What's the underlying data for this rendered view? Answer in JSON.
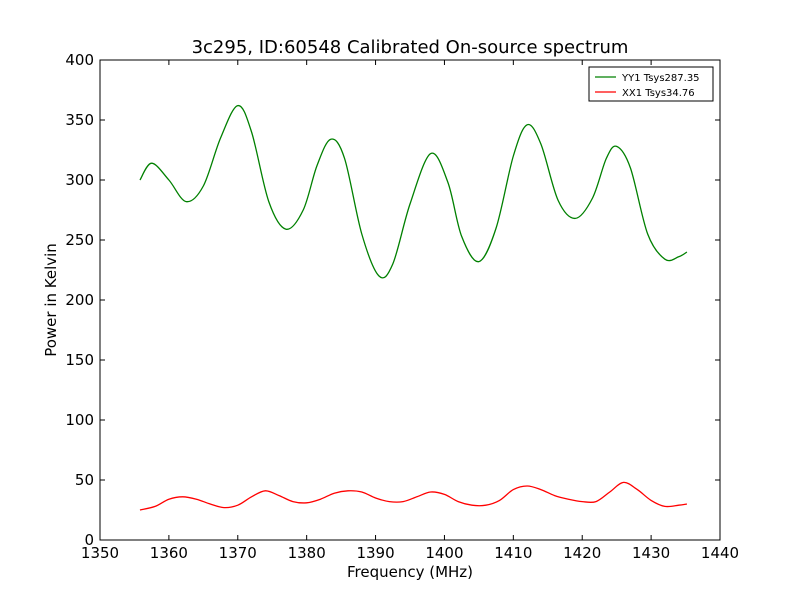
{
  "chart_data": {
    "type": "line",
    "title": "3c295, ID:60548 Calibrated On-source spectrum",
    "xlabel": "Frequency (MHz)",
    "ylabel": "Power in Kelvin",
    "xlim": [
      1350,
      1440
    ],
    "ylim": [
      0,
      400
    ],
    "xticks": [
      1350,
      1360,
      1370,
      1380,
      1390,
      1400,
      1410,
      1420,
      1430,
      1440
    ],
    "yticks": [
      0,
      50,
      100,
      150,
      200,
      250,
      300,
      350,
      400
    ],
    "grid": false,
    "legend_position": "top-right",
    "series": [
      {
        "name": "YY1 Tsys287.35",
        "color": "#008000",
        "x": [
          1355.8,
          1357.5,
          1360,
          1362.5,
          1365,
          1367.5,
          1370,
          1372,
          1374.5,
          1377,
          1379.5,
          1381.5,
          1383.5,
          1385.5,
          1388,
          1390.5,
          1392.5,
          1395,
          1398,
          1400.5,
          1402.5,
          1405,
          1407.5,
          1410,
          1412,
          1414,
          1416.5,
          1419,
          1421.5,
          1423.5,
          1425,
          1427,
          1429.5,
          1432,
          1434,
          1435.2
        ],
        "y": [
          300,
          314,
          300,
          282,
          295,
          335,
          362,
          340,
          282,
          259,
          275,
          312,
          334,
          318,
          255,
          220,
          230,
          280,
          322,
          298,
          253,
          232,
          260,
          320,
          346,
          330,
          283,
          268,
          285,
          318,
          328,
          310,
          255,
          234,
          236,
          240
        ]
      },
      {
        "name": "XX1 Tsys34.76",
        "color": "#ff0000",
        "x": [
          1355.8,
          1358,
          1360,
          1362,
          1364,
          1366,
          1368,
          1370,
          1372,
          1374,
          1376,
          1378,
          1380,
          1382,
          1384,
          1386,
          1388,
          1390,
          1392,
          1394,
          1396,
          1398,
          1400,
          1402,
          1404,
          1406,
          1408,
          1410,
          1412,
          1414,
          1416,
          1418,
          1420,
          1422,
          1424,
          1426,
          1428,
          1430,
          1432,
          1434,
          1435.2
        ],
        "y": [
          25,
          28,
          34,
          36,
          34,
          30,
          27,
          29,
          36,
          41,
          37,
          32,
          31,
          34,
          39,
          41,
          40,
          35,
          32,
          32,
          36,
          40,
          38,
          32,
          29,
          29,
          33,
          42,
          45,
          42,
          37,
          34,
          32,
          32,
          40,
          48,
          42,
          33,
          28,
          29,
          30
        ]
      }
    ]
  }
}
